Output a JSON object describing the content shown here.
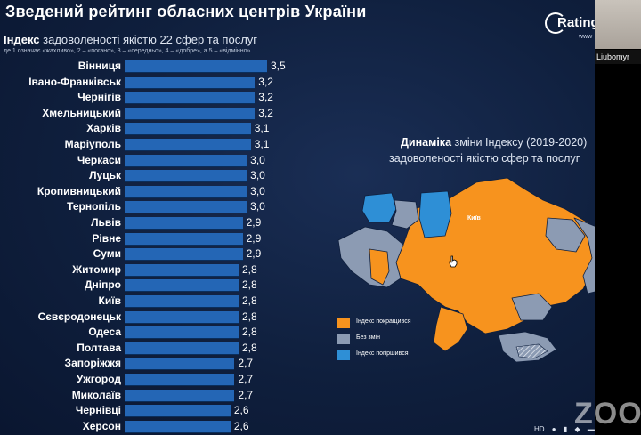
{
  "slide": {
    "title": "Зведений рейтинг обласних центрів України",
    "subtitle_bold": "Індекс",
    "subtitle_rest": " задоволеності якістю 22 сфер та послуг",
    "scale_note": "де 1 означає «жахливо», 2 – «погано», 3 – «середньо», 4 – «добре», а 5 – «відмінно»",
    "logo_text": "Rating",
    "logo_url": "www"
  },
  "chart_data": {
    "type": "bar",
    "orientation": "horizontal",
    "categories": [
      "Вінниця",
      "Івано-Франківськ",
      "Чернігів",
      "Хмельницький",
      "Харків",
      "Маріуполь",
      "Черкаси",
      "Луцьк",
      "Кропивницький",
      "Тернопіль",
      "Львів",
      "Рівне",
      "Суми",
      "Житомир",
      "Дніпро",
      "Київ",
      "Сєвєродонецьк",
      "Одеса",
      "Полтава",
      "Запоріжжя",
      "Ужгород",
      "Миколаїв",
      "Чернівці",
      "Херсон"
    ],
    "values": [
      3.5,
      3.2,
      3.2,
      3.2,
      3.1,
      3.1,
      3.0,
      3.0,
      3.0,
      3.0,
      2.9,
      2.9,
      2.9,
      2.8,
      2.8,
      2.8,
      2.8,
      2.8,
      2.8,
      2.7,
      2.7,
      2.7,
      2.6,
      2.6
    ],
    "value_labels": [
      "3,5",
      "3,2",
      "3,2",
      "3,2",
      "3,1",
      "3,1",
      "3,0",
      "3,0",
      "3,0",
      "3,0",
      "2,9",
      "2,9",
      "2,9",
      "2,8",
      "2,8",
      "2,8",
      "2,8",
      "2,8",
      "2,8",
      "2,7",
      "2,7",
      "2,7",
      "2,6",
      "2,6"
    ],
    "bar_color": "#2466b5"
  },
  "map": {
    "title_bold": "Динаміка",
    "title_rest": " зміни Індексу (2019-2020)",
    "title_line2": "задоволеності якістю сфер та послуг",
    "colors": {
      "improved": "#f7931e",
      "no_change": "#8c9bb3",
      "worse": "#2e8fd6"
    },
    "legend": [
      {
        "label": "Індекс покращився",
        "color": "#f7931e"
      },
      {
        "label": "Без змін",
        "color": "#8c9bb3"
      },
      {
        "label": "Індекс погіршився",
        "color": "#2e8fd6"
      }
    ],
    "capital_label": "Київ"
  },
  "video": {
    "participant_name": "Liubomyr"
  },
  "app": {
    "watermark": "ZOO"
  }
}
